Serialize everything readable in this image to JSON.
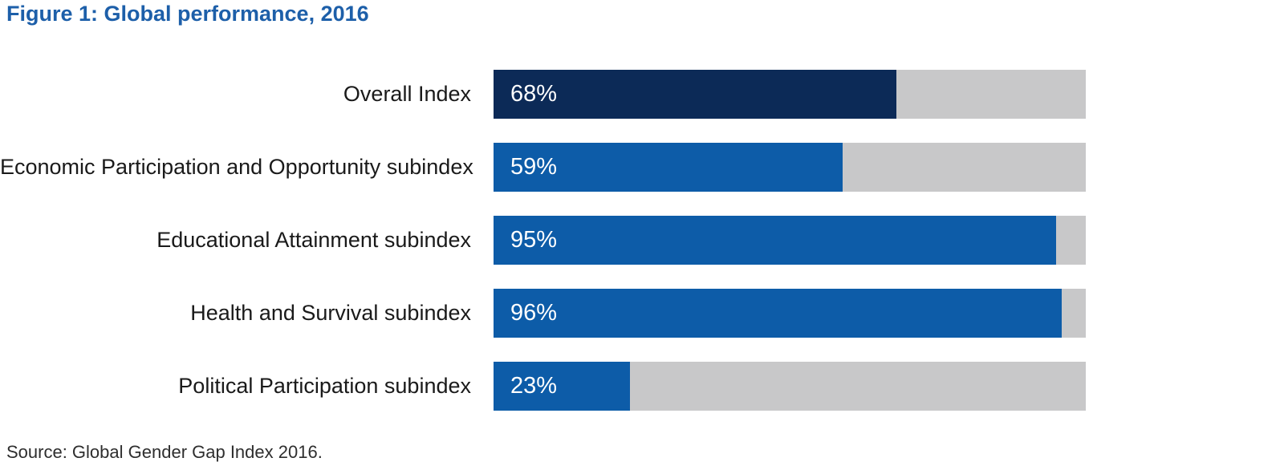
{
  "figure": {
    "title": "Figure 1: Global performance, 2016",
    "source": "Source: Global Gender Gap Index 2016."
  },
  "colors": {
    "title_blue": "#1d5fa9",
    "navy": "#0c2a57",
    "blue": "#0d5ca8",
    "track_gray": "#c8c8c9",
    "label_black": "#1a1a1a",
    "value_white": "#ffffff",
    "source_gray": "#2e2e2e"
  },
  "chart_data": {
    "type": "bar",
    "orientation": "horizontal",
    "title": "Figure 1: Global performance, 2016",
    "xlabel": "",
    "ylabel": "",
    "xlim": [
      0,
      100
    ],
    "grid": false,
    "legend": false,
    "categories": [
      "Overall Index",
      "Economic Participation and Opportunity subindex",
      "Educational Attainment subindex",
      "Health and Survival subindex",
      "Political Participation subindex"
    ],
    "values": [
      68,
      59,
      95,
      96,
      23
    ],
    "value_labels": [
      "68%",
      "59%",
      "95%",
      "96%",
      "23%"
    ],
    "bar_colors": [
      "#0c2a57",
      "#0d5ca8",
      "#0d5ca8",
      "#0d5ca8",
      "#0d5ca8"
    ],
    "track_color": "#c8c8c9",
    "source": "Source: Global Gender Gap Index 2016."
  }
}
